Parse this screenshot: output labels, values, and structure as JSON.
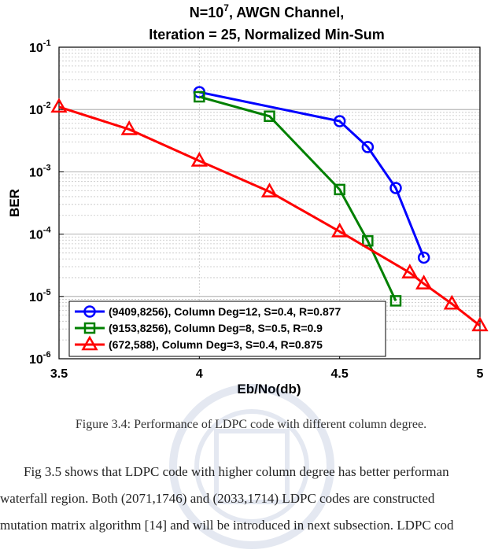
{
  "figure": {
    "title_parts": [
      "N=10",
      "7",
      ", AWGN Channel,"
    ],
    "title_line2": "Iteration = 25, Normalized Min-Sum",
    "caption": "Figure 3.4: Performance of LDPC code with different column degree.",
    "paragraph_lines": [
      "Fig 3.5 shows that LDPC code with higher column degree has better performan",
      "waterfall region. Both (2071,1746) and (2033,1714) LDPC codes are constructed",
      "mutation matrix algorithm [14] and will be introduced in next subsection. LDPC cod"
    ]
  },
  "chart_data": {
    "type": "line",
    "xlabel": "Eb/No(db)",
    "ylabel": "BER",
    "xlim": [
      3.5,
      5
    ],
    "ylim": [
      1e-06,
      0.1
    ],
    "yscale": "log",
    "grid": true,
    "legend_position": "bottom-left",
    "x_ticks": [
      "3.5",
      "4",
      "4.5",
      "5"
    ],
    "y_ticks": [
      {
        "base": "10",
        "exp": "-6"
      },
      {
        "base": "10",
        "exp": "-5"
      },
      {
        "base": "10",
        "exp": "-4"
      },
      {
        "base": "10",
        "exp": "-3"
      },
      {
        "base": "10",
        "exp": "-2"
      },
      {
        "base": "10",
        "exp": "-1"
      }
    ],
    "series": [
      {
        "name": "(9409,8256), Column Deg=12, S=0.4, R=0.877",
        "color": "#0000ff",
        "marker": "circle",
        "x": [
          4.0,
          4.5,
          4.6,
          4.7,
          4.8
        ],
        "y": [
          0.019,
          0.0065,
          0.0025,
          0.00055,
          4.2e-05
        ]
      },
      {
        "name": "(9153,8256), Column Deg=8,   S=0.5, R=0.9",
        "color": "#008000",
        "marker": "square",
        "x": [
          4.0,
          4.25,
          4.5,
          4.6,
          4.7
        ],
        "y": [
          0.016,
          0.0078,
          0.00052,
          7.8e-05,
          8.5e-06
        ]
      },
      {
        "name": "(672,588),     Column Deg=3,   S=0.4, R=0.875",
        "color": "#ff0000",
        "marker": "triangle",
        "x": [
          3.5,
          3.75,
          4.0,
          4.25,
          4.5,
          4.75,
          4.8,
          4.9,
          5.0
        ],
        "y": [
          0.011,
          0.0048,
          0.0015,
          0.00048,
          0.00011,
          2.4e-05,
          1.6e-05,
          7.6e-06,
          3.4e-06
        ]
      }
    ]
  }
}
